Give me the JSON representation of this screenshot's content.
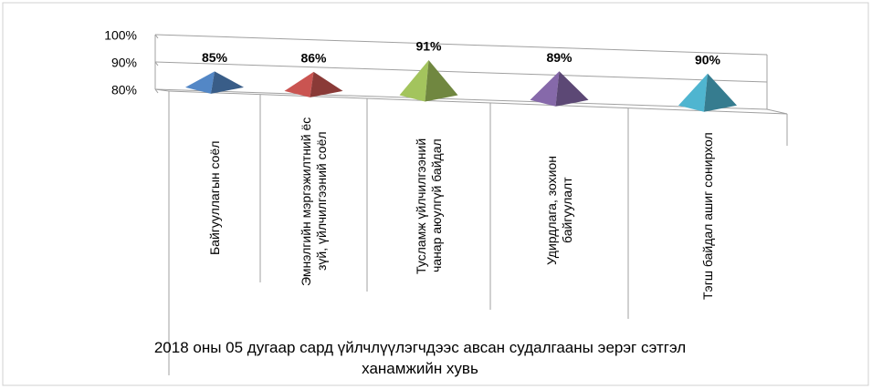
{
  "chart_data": {
    "type": "pyramid3d",
    "categories": [
      "Байгууллагын соёл",
      "Эмнэлгийн мэргэжилтний ёс зүй, үйлчилгээний соёл",
      "Тусламж үйлчилгээний чанар аюулгүй байдал",
      "Удирдлага, зохион байгуулалт",
      "Тэгш байдал ашиг сонирхол"
    ],
    "values": [
      85,
      86,
      91,
      89,
      90
    ],
    "value_labels": [
      "85%",
      "86%",
      "91%",
      "89%",
      "90%"
    ],
    "colors": [
      "#4f81bd",
      "#c0504d",
      "#9bbb59",
      "#8064a2",
      "#4bacc6"
    ],
    "ylim": [
      80,
      100
    ],
    "yticks": [
      {
        "value": 80,
        "label": "80%"
      },
      {
        "value": 90,
        "label": "90%"
      },
      {
        "value": 100,
        "label": "100%"
      }
    ],
    "grid": true,
    "x_label": "2018 оны 05 дугаар сард үйлчлүүлэгчдээс авсан судалгааны эерэг сэтгэл ханамжийн хувь"
  }
}
